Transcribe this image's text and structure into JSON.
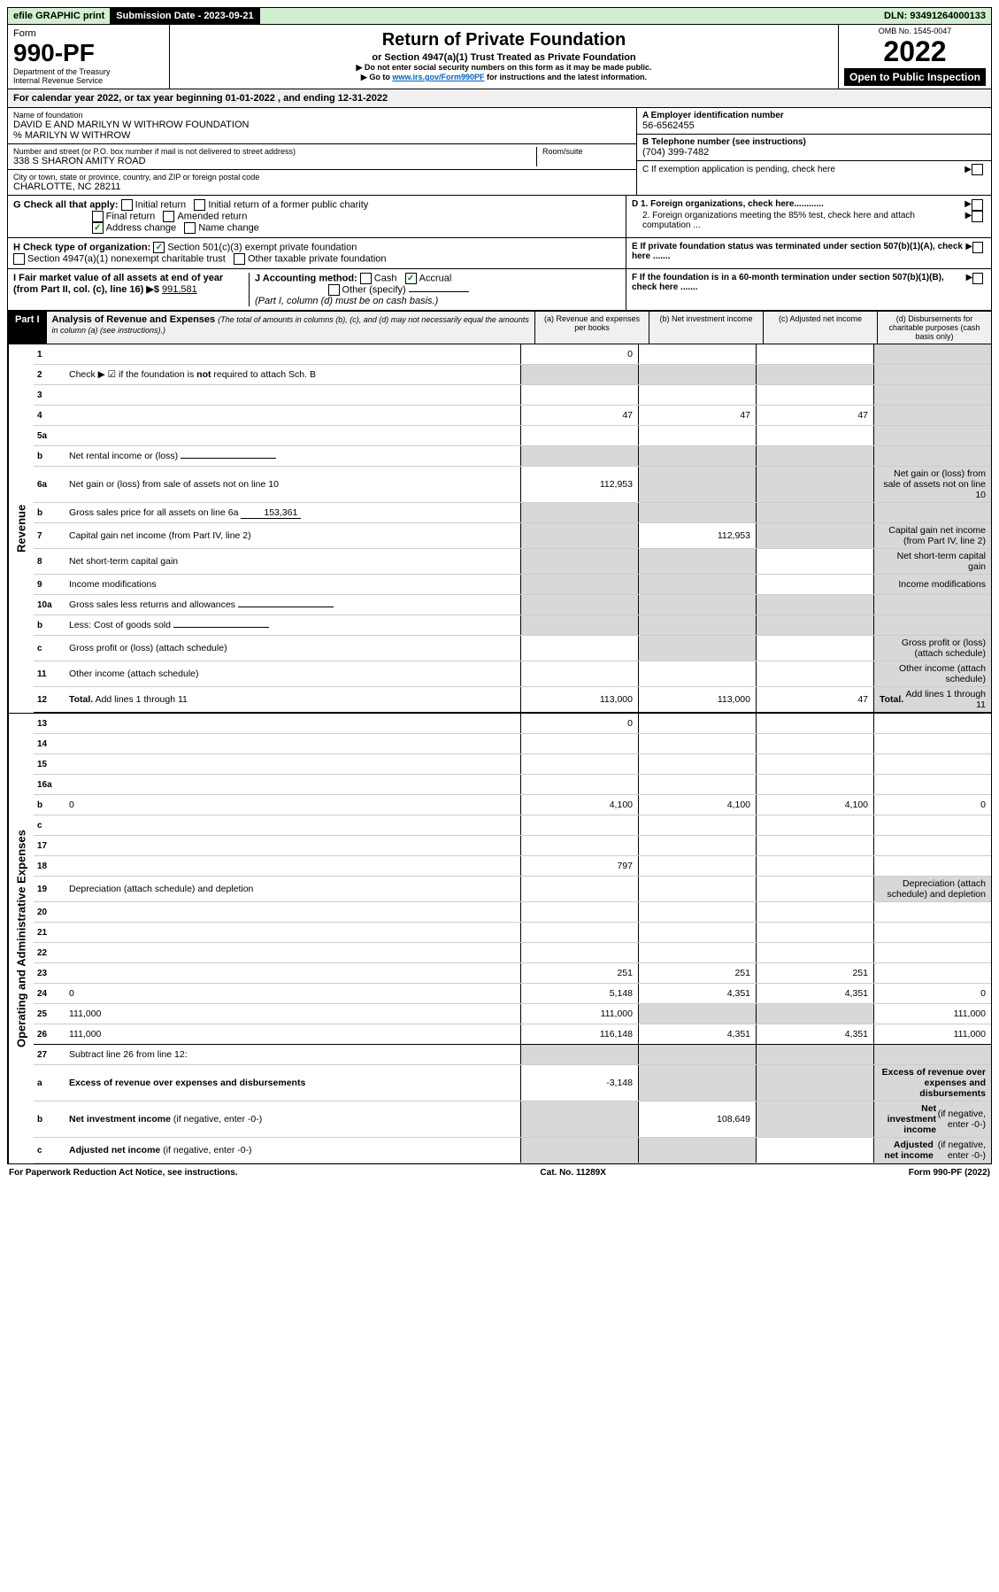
{
  "topbar": {
    "efile": "efile GRAPHIC print",
    "subdate_label": "Submission Date - 2023-09-21",
    "dln": "DLN: 93491264000133"
  },
  "header": {
    "form_word": "Form",
    "form_number": "990-PF",
    "dept": "Department of the Treasury",
    "irs": "Internal Revenue Service",
    "title": "Return of Private Foundation",
    "subtitle": "or Section 4947(a)(1) Trust Treated as Private Foundation",
    "note1": "▶ Do not enter social security numbers on this form as it may be made public.",
    "note2_pre": "▶ Go to ",
    "note2_link": "www.irs.gov/Form990PF",
    "note2_post": " for instructions and the latest information.",
    "omb": "OMB No. 1545-0047",
    "year": "2022",
    "open_pub": "Open to Public Inspection"
  },
  "calyear": "For calendar year 2022, or tax year beginning 01-01-2022               , and ending 12-31-2022",
  "info": {
    "name_lbl": "Name of foundation",
    "name": "DAVID E AND MARILYN W WITHROW FOUNDATION",
    "care_of": "% MARILYN W WITHROW",
    "addr_lbl": "Number and street (or P.O. box number if mail is not delivered to street address)",
    "addr": "338 S SHARON AMITY ROAD",
    "room_lbl": "Room/suite",
    "city_lbl": "City or town, state or province, country, and ZIP or foreign postal code",
    "city": "CHARLOTTE, NC  28211",
    "a_lbl": "A Employer identification number",
    "a_val": "56-6562455",
    "b_lbl": "B Telephone number (see instructions)",
    "b_val": "(704) 399-7482",
    "c_lbl": "C If exemption application is pending, check here"
  },
  "checks": {
    "g_label": "G Check all that apply:",
    "g_items": [
      "Initial return",
      "Initial return of a former public charity",
      "Final return",
      "Amended return",
      "Address change",
      "Name change"
    ],
    "h_label": "H Check type of organization:",
    "h_items": [
      "Section 501(c)(3) exempt private foundation",
      "Section 4947(a)(1) nonexempt charitable trust",
      "Other taxable private foundation"
    ],
    "i_label": "I Fair market value of all assets at end of year (from Part II, col. (c), line 16) ▶$",
    "i_val": "991,581",
    "j_label": "J Accounting method:",
    "j_cash": "Cash",
    "j_accrual": "Accrual",
    "j_other": "Other (specify)",
    "j_note": "(Part I, column (d) must be on cash basis.)",
    "d1": "D 1. Foreign organizations, check here............",
    "d2": "2. Foreign organizations meeting the 85% test, check here and attach computation ...",
    "e": "E  If private foundation status was terminated under section 507(b)(1)(A), check here .......",
    "f": "F  If the foundation is in a 60-month termination under section 507(b)(1)(B), check here .......",
    "arrow": "▶"
  },
  "part1": {
    "label": "Part I",
    "title": "Analysis of Revenue and Expenses",
    "title_note": "(The total of amounts in columns (b), (c), and (d) may not necessarily equal the amounts in column (a) (see instructions).)",
    "cols": {
      "a": "(a)   Revenue and expenses per books",
      "b": "(b)   Net investment income",
      "c": "(c)   Adjusted net income",
      "d": "(d)   Disbursements for charitable purposes (cash basis only)"
    }
  },
  "sides": {
    "revenue": "Revenue",
    "expenses": "Operating and Administrative Expenses"
  },
  "rows": [
    {
      "n": "1",
      "d": "",
      "a": "0",
      "b": "",
      "c": "",
      "dgrey": true
    },
    {
      "n": "2",
      "d": "Check ▶ ☑ if the foundation is <b>not</b> required to attach Sch. B",
      "allgrey": true
    },
    {
      "n": "3",
      "d": "",
      "a": "",
      "b": "",
      "c": "",
      "dgrey": true
    },
    {
      "n": "4",
      "d": "",
      "a": "47",
      "b": "47",
      "c": "47",
      "dgrey": true
    },
    {
      "n": "5a",
      "d": "",
      "a": "",
      "b": "",
      "c": "",
      "dgrey": true
    },
    {
      "n": "b",
      "d": "Net rental income or (loss)",
      "allgrey": true,
      "inline": true
    },
    {
      "n": "6a",
      "d": "Net gain or (loss) from sale of assets not on line 10",
      "a": "112,953",
      "bgrey": true,
      "cgrey": true,
      "dgrey": true
    },
    {
      "n": "b",
      "d": "Gross sales price for all assets on line 6a",
      "inline_val": "153,361",
      "allgrey": true
    },
    {
      "n": "7",
      "d": "Capital gain net income (from Part IV, line 2)",
      "agrey": true,
      "b": "112,953",
      "cgrey": true,
      "dgrey": true
    },
    {
      "n": "8",
      "d": "Net short-term capital gain",
      "agrey": true,
      "bgrey": true,
      "c": "",
      "dgrey": true
    },
    {
      "n": "9",
      "d": "Income modifications",
      "agrey": true,
      "bgrey": true,
      "c": "",
      "dgrey": true
    },
    {
      "n": "10a",
      "d": "Gross sales less returns and allowances",
      "inline": true,
      "allgrey": true
    },
    {
      "n": "b",
      "d": "Less: Cost of goods sold",
      "inline": true,
      "allgrey": true
    },
    {
      "n": "c",
      "d": "Gross profit or (loss) (attach schedule)",
      "a": "",
      "bgrey": true,
      "c": "",
      "dgrey": true
    },
    {
      "n": "11",
      "d": "Other income (attach schedule)",
      "a": "",
      "b": "",
      "c": "",
      "dgrey": true
    },
    {
      "n": "12",
      "d": "<b>Total.</b> Add lines 1 through 11",
      "a": "113,000",
      "b": "113,000",
      "c": "47",
      "dgrey": true,
      "thick": true
    }
  ],
  "exp_rows": [
    {
      "n": "13",
      "d": "",
      "a": "0",
      "b": "",
      "c": ""
    },
    {
      "n": "14",
      "d": "",
      "a": "",
      "b": "",
      "c": ""
    },
    {
      "n": "15",
      "d": "",
      "a": "",
      "b": "",
      "c": ""
    },
    {
      "n": "16a",
      "d": "",
      "a": "",
      "b": "",
      "c": ""
    },
    {
      "n": "b",
      "d": "0",
      "a": "4,100",
      "b": "4,100",
      "c": "4,100"
    },
    {
      "n": "c",
      "d": "",
      "a": "",
      "b": "",
      "c": ""
    },
    {
      "n": "17",
      "d": "",
      "a": "",
      "b": "",
      "c": ""
    },
    {
      "n": "18",
      "d": "",
      "a": "797",
      "b": "",
      "c": ""
    },
    {
      "n": "19",
      "d": "Depreciation (attach schedule) and depletion",
      "a": "",
      "b": "",
      "c": "",
      "dgrey": true
    },
    {
      "n": "20",
      "d": "",
      "a": "",
      "b": "",
      "c": ""
    },
    {
      "n": "21",
      "d": "",
      "a": "",
      "b": "",
      "c": ""
    },
    {
      "n": "22",
      "d": "",
      "a": "",
      "b": "",
      "c": ""
    },
    {
      "n": "23",
      "d": "",
      "a": "251",
      "b": "251",
      "c": "251"
    },
    {
      "n": "24",
      "d": "0",
      "a": "5,148",
      "b": "4,351",
      "c": "4,351"
    },
    {
      "n": "25",
      "d": "111,000",
      "a": "111,000",
      "bgrey": true,
      "cgrey": true
    },
    {
      "n": "26",
      "d": "111,000",
      "a": "116,148",
      "b": "4,351",
      "c": "4,351",
      "thick": true
    },
    {
      "n": "27",
      "d": "Subtract line 26 from line 12:",
      "allgrey": true
    },
    {
      "n": "a",
      "d": "<b>Excess of revenue over expenses and disbursements</b>",
      "a": "-3,148",
      "bgrey": true,
      "cgrey": true,
      "dgrey": true
    },
    {
      "n": "b",
      "d": "<b>Net investment income</b> (if negative, enter -0-)",
      "agrey": true,
      "b": "108,649",
      "cgrey": true,
      "dgrey": true
    },
    {
      "n": "c",
      "d": "<b>Adjusted net income</b> (if negative, enter -0-)",
      "agrey": true,
      "bgrey": true,
      "c": "",
      "dgrey": true
    }
  ],
  "footer": {
    "left": "For Paperwork Reduction Act Notice, see instructions.",
    "mid": "Cat. No. 11289X",
    "right": "Form 990-PF (2022)"
  },
  "colors": {
    "topbar_bg": "#d0f0d0",
    "black": "#000000",
    "grey_cell": "#d8d8d8",
    "hdr_grey": "#f0f0f0",
    "check_green": "#0a7a0a",
    "link": "#0060c0"
  }
}
